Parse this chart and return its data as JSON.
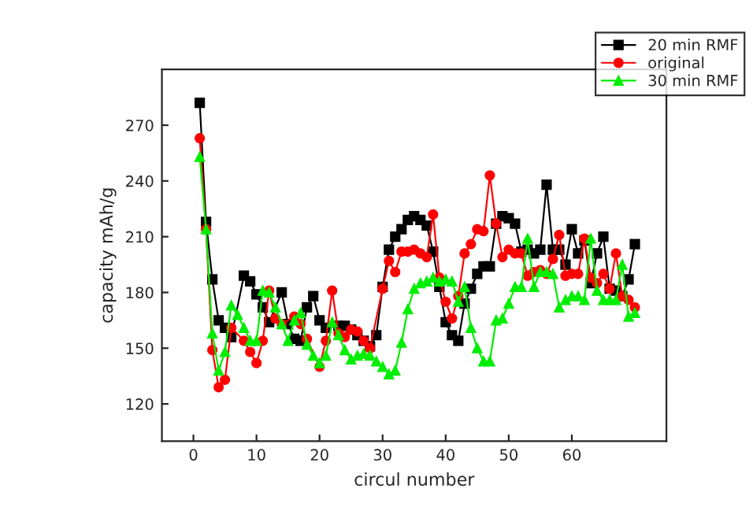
{
  "chart_data": {
    "type": "line",
    "xlabel": "circul number",
    "ylabel": "capacity mAh/g",
    "xlim": [
      -5,
      75
    ],
    "ylim": [
      100,
      300
    ],
    "xticks": [
      0,
      10,
      20,
      30,
      40,
      50,
      60
    ],
    "yticks": [
      120,
      150,
      180,
      210,
      240,
      270
    ],
    "grid": false,
    "legend": "top right",
    "line_style": "solid",
    "series": [
      {
        "name": "20 min RMF",
        "color": "#000000",
        "marker": "square",
        "x": [
          1,
          2,
          3,
          4,
          5,
          6,
          8,
          9,
          10,
          11,
          12,
          14,
          15,
          16,
          17,
          18,
          19,
          20,
          21,
          23,
          24,
          25,
          26,
          27,
          28,
          29,
          30,
          31,
          32,
          33,
          34,
          35,
          36,
          37,
          38,
          39,
          40,
          41,
          42,
          43,
          44,
          45,
          46,
          47,
          48,
          49,
          50,
          51,
          52,
          53,
          54,
          55,
          56,
          57,
          58,
          59,
          60,
          61,
          62,
          63,
          64,
          65,
          66,
          67,
          68,
          69,
          70
        ],
        "values": [
          282,
          218,
          187,
          165,
          161,
          156,
          189,
          186,
          179,
          172,
          164,
          180,
          163,
          155,
          154,
          172,
          178,
          165,
          161,
          162,
          162,
          160,
          157,
          154,
          151,
          157,
          183,
          203,
          210,
          214,
          219,
          221,
          219,
          216,
          202,
          183,
          164,
          157,
          154,
          174,
          182,
          190,
          194,
          194,
          217,
          221,
          220,
          217,
          202,
          203,
          201,
          203,
          238,
          203,
          203,
          195,
          214,
          201,
          208,
          185,
          201,
          210,
          182,
          181,
          178,
          187,
          206
        ]
      },
      {
        "name": "original",
        "color": "#ff0000",
        "marker": "circle",
        "x": [
          1,
          2,
          3,
          4,
          5,
          6,
          8,
          9,
          10,
          11,
          12,
          13,
          14,
          16,
          17,
          18,
          20,
          21,
          22,
          23,
          24,
          25,
          26,
          27,
          28,
          30,
          31,
          32,
          33,
          34,
          35,
          36,
          37,
          38,
          39,
          40,
          41,
          42,
          43,
          44,
          45,
          46,
          47,
          48,
          49,
          50,
          51,
          52,
          53,
          54,
          55,
          56,
          57,
          58,
          59,
          60,
          61,
          62,
          63,
          64,
          65,
          66,
          67,
          68,
          69,
          70
        ],
        "values": [
          263,
          214,
          149,
          129,
          133,
          161,
          154,
          148,
          142,
          154,
          181,
          166,
          163,
          167,
          163,
          155,
          140,
          154,
          181,
          158,
          156,
          160,
          159,
          154,
          150,
          182,
          197,
          191,
          202,
          202,
          203,
          201,
          199,
          222,
          188,
          175,
          166,
          178,
          201,
          206,
          214,
          213,
          243,
          217,
          199,
          203,
          201,
          201,
          189,
          191,
          192,
          190,
          198,
          211,
          189,
          190,
          190,
          209,
          188,
          185,
          190,
          182,
          201,
          178,
          176,
          172
        ]
      },
      {
        "name": "30 min RMF",
        "color": "#00ee00",
        "marker": "triangle",
        "x": [
          1,
          2,
          3,
          4,
          5,
          6,
          7,
          8,
          9,
          10,
          11,
          12,
          13,
          14,
          15,
          16,
          17,
          18,
          19,
          20,
          21,
          22,
          23,
          24,
          25,
          26,
          27,
          28,
          29,
          30,
          31,
          32,
          33,
          34,
          35,
          36,
          37,
          38,
          39,
          40,
          41,
          42,
          43,
          44,
          45,
          46,
          47,
          48,
          49,
          50,
          51,
          52,
          53,
          54,
          55,
          56,
          57,
          58,
          59,
          60,
          61,
          62,
          63,
          64,
          65,
          66,
          67,
          68,
          69,
          70
        ],
        "values": [
          253,
          214,
          158,
          138,
          148,
          173,
          168,
          161,
          154,
          154,
          181,
          180,
          172,
          163,
          154,
          165,
          169,
          152,
          146,
          142,
          146,
          164,
          157,
          149,
          144,
          146,
          147,
          146,
          143,
          140,
          136,
          138,
          153,
          171,
          182,
          185,
          186,
          188,
          186,
          187,
          186,
          175,
          183,
          161,
          150,
          143,
          143,
          165,
          166,
          174,
          183,
          183,
          209,
          183,
          191,
          191,
          190,
          172,
          176,
          178,
          178,
          176,
          209,
          181,
          176,
          176,
          176,
          195,
          167,
          169
        ]
      }
    ]
  }
}
